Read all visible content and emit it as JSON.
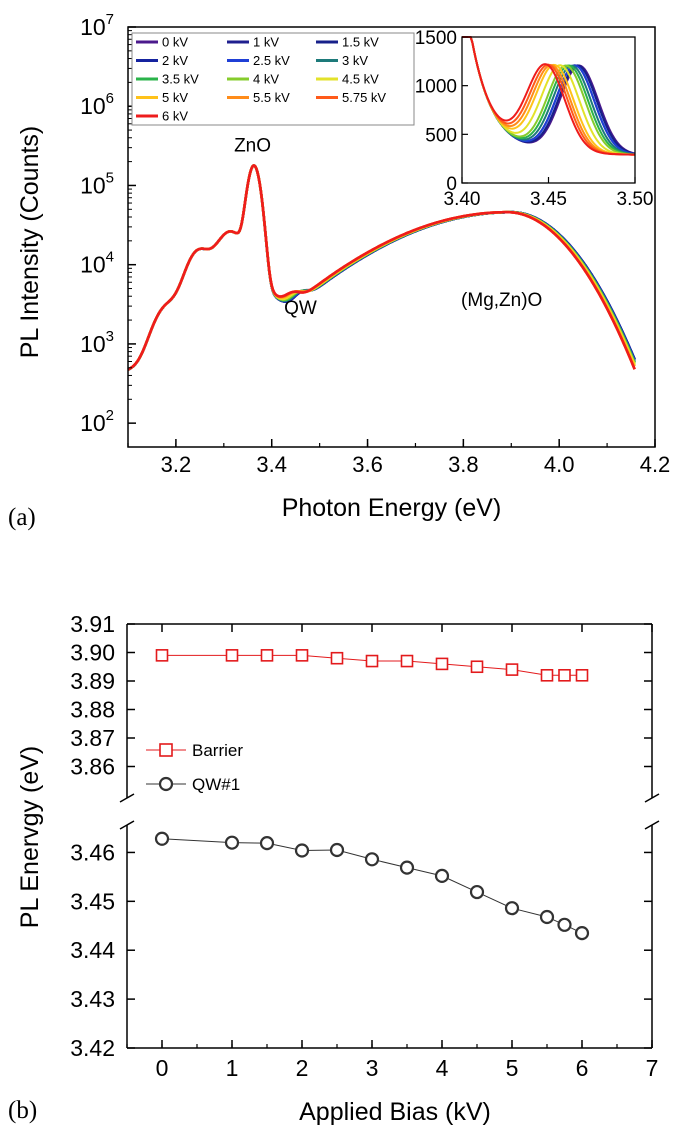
{
  "chart_data": [
    {
      "panel_label": "(a)",
      "type": "line",
      "xlabel": "Photon Energy (eV)",
      "ylabel": "PL Intensity (Counts)",
      "xlim": [
        3.1,
        4.2
      ],
      "ylim": [
        50,
        10000000
      ],
      "yscale": "log",
      "x_ticks": [
        "3.2",
        "3.4",
        "3.6",
        "3.8",
        "4.0",
        "4.2"
      ],
      "x_tick_values": [
        3.2,
        3.4,
        3.6,
        3.8,
        4.0,
        4.2
      ],
      "y_ticks": [
        {
          "base": "10",
          "exp": "2",
          "value": 100
        },
        {
          "base": "10",
          "exp": "3",
          "value": 1000
        },
        {
          "base": "10",
          "exp": "4",
          "value": 10000
        },
        {
          "base": "10",
          "exp": "5",
          "value": 100000
        },
        {
          "base": "10",
          "exp": "6",
          "value": 1000000
        },
        {
          "base": "10",
          "exp": "7",
          "value": 10000000
        }
      ],
      "annotations": [
        {
          "text": "ZnO",
          "x": 3.36,
          "y": 270000
        },
        {
          "text": "QW",
          "x": 3.46,
          "y": 2400
        },
        {
          "text": "(Mg,Zn)O",
          "x": 3.88,
          "y": 3000
        }
      ],
      "legend_position": "top-left",
      "series": [
        {
          "name": "0 kV",
          "color": "#4b1a8c",
          "qw_peak": 3.4628,
          "barrier_peak": 3.899
        },
        {
          "name": "1 kV",
          "color": "#1f1f8f",
          "qw_peak": 3.462,
          "barrier_peak": 3.899
        },
        {
          "name": "1.5 kV",
          "color": "#17208a",
          "qw_peak": 3.4619,
          "barrier_peak": 3.899
        },
        {
          "name": "2 kV",
          "color": "#15239f",
          "qw_peak": 3.4604,
          "barrier_peak": 3.899
        },
        {
          "name": "2.5 kV",
          "color": "#1f3fd6",
          "qw_peak": 3.4605,
          "barrier_peak": 3.898
        },
        {
          "name": "3 kV",
          "color": "#1d7a7a",
          "qw_peak": 3.4586,
          "barrier_peak": 3.897
        },
        {
          "name": "3.5 kV",
          "color": "#2ab34a",
          "qw_peak": 3.4569,
          "barrier_peak": 3.897
        },
        {
          "name": "4 kV",
          "color": "#86cc2c",
          "qw_peak": 3.4552,
          "barrier_peak": 3.896
        },
        {
          "name": "4.5 kV",
          "color": "#e3e22a",
          "qw_peak": 3.4519,
          "barrier_peak": 3.895
        },
        {
          "name": "5 kV",
          "color": "#ffc21a",
          "qw_peak": 3.4486,
          "barrier_peak": 3.894
        },
        {
          "name": "5.5 kV",
          "color": "#ff8c1a",
          "qw_peak": 3.4468,
          "barrier_peak": 3.892
        },
        {
          "name": "5.75 kV",
          "color": "#ff5a1a",
          "qw_peak": 3.4452,
          "barrier_peak": 3.892
        },
        {
          "name": "6 kV",
          "color": "#ee1c1c",
          "qw_peak": 3.4435,
          "barrier_peak": 3.892
        }
      ],
      "inset": {
        "type": "line",
        "xlim": [
          3.4,
          3.5
        ],
        "ylim": [
          0,
          1500
        ],
        "x_ticks": [
          "3.40",
          "3.45",
          "3.50"
        ],
        "x_tick_values": [
          3.4,
          3.45,
          3.5
        ],
        "y_ticks": [
          "0",
          "500",
          "1000",
          "1500"
        ],
        "y_tick_values": [
          0,
          500,
          1000,
          1500
        ]
      }
    },
    {
      "panel_label": "(b)",
      "type": "scatter",
      "xlabel": "Applied Bias (kV)",
      "ylabel": "PL Enervgy (eV)",
      "xlim": [
        -0.5,
        7
      ],
      "x_ticks": [
        "0",
        "1",
        "2",
        "3",
        "4",
        "5",
        "6",
        "7"
      ],
      "x_tick_values": [
        0,
        1,
        2,
        3,
        4,
        5,
        6,
        7
      ],
      "axis_break": true,
      "upper_segment": {
        "ylim": [
          3.85,
          3.91
        ],
        "y_ticks": [
          "3.86",
          "3.87",
          "3.88",
          "3.89",
          "3.90",
          "3.91"
        ],
        "y_tick_values": [
          3.86,
          3.87,
          3.88,
          3.89,
          3.9,
          3.91
        ]
      },
      "lower_segment": {
        "ylim": [
          3.42,
          3.465
        ],
        "y_ticks": [
          "3.42",
          "3.43",
          "3.44",
          "3.45",
          "3.46"
        ],
        "y_tick_values": [
          3.42,
          3.43,
          3.44,
          3.45,
          3.46
        ]
      },
      "legend_position": "left-middle",
      "series": [
        {
          "name": "Barrier",
          "marker": "square",
          "color": "#e31a1c",
          "x": [
            0,
            1,
            1.5,
            2,
            2.5,
            3,
            3.5,
            4,
            4.5,
            5,
            5.5,
            5.75,
            6
          ],
          "y": [
            3.899,
            3.899,
            3.899,
            3.899,
            3.898,
            3.897,
            3.897,
            3.896,
            3.895,
            3.894,
            3.892,
            3.892,
            3.892
          ]
        },
        {
          "name": "QW#1",
          "marker": "circle",
          "color": "#333333",
          "x": [
            0,
            1,
            1.5,
            2,
            2.5,
            3,
            3.5,
            4,
            4.5,
            5,
            5.5,
            5.75,
            6
          ],
          "y": [
            3.4628,
            3.462,
            3.4619,
            3.4604,
            3.4605,
            3.4586,
            3.4569,
            3.4552,
            3.4519,
            3.4486,
            3.4468,
            3.4452,
            3.4435
          ]
        }
      ]
    }
  ]
}
